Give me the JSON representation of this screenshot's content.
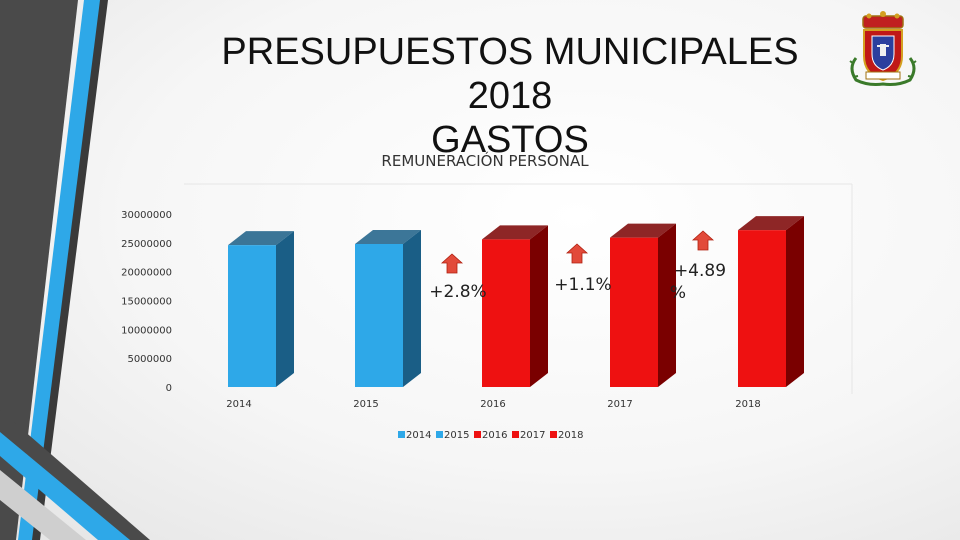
{
  "slide": {
    "title_line1": "PRESUPUESTOS MUNICIPALES 2018",
    "title_line2": "GASTOS",
    "crest_icon": "municipal-coat-of-arms-icon"
  },
  "chart_data": {
    "type": "bar",
    "title": "REMUNERACIÓN PERSONAL",
    "categories": [
      "2014",
      "2015",
      "2016",
      "2017",
      "2018"
    ],
    "values": [
      24600000,
      24800000,
      25600000,
      25900000,
      27200000
    ],
    "colors": [
      "#2ea8e8",
      "#2ea8e8",
      "#ee1111",
      "#ee1111",
      "#ee1111"
    ],
    "side_colors": [
      "#1a5e86",
      "#1a5e86",
      "#7a0000",
      "#7a0000",
      "#7a0000"
    ],
    "yticks": [
      "30000000",
      "25000000",
      "20000000",
      "15000000",
      "10000000",
      "5000000",
      "0"
    ],
    "ytick_values": [
      30000000,
      25000000,
      20000000,
      15000000,
      10000000,
      5000000,
      0
    ],
    "ylim": [
      0,
      30000000
    ],
    "legend_position": "bottom",
    "legend": [
      "2014",
      "2015",
      "2016",
      "2017",
      "2018"
    ],
    "grid": false,
    "annotations": [
      {
        "line1": "+2.8%",
        "line2": ""
      },
      {
        "line1": "+1.1%",
        "line2": ""
      },
      {
        "line1": "+4.89",
        "line2": "%"
      }
    ]
  }
}
